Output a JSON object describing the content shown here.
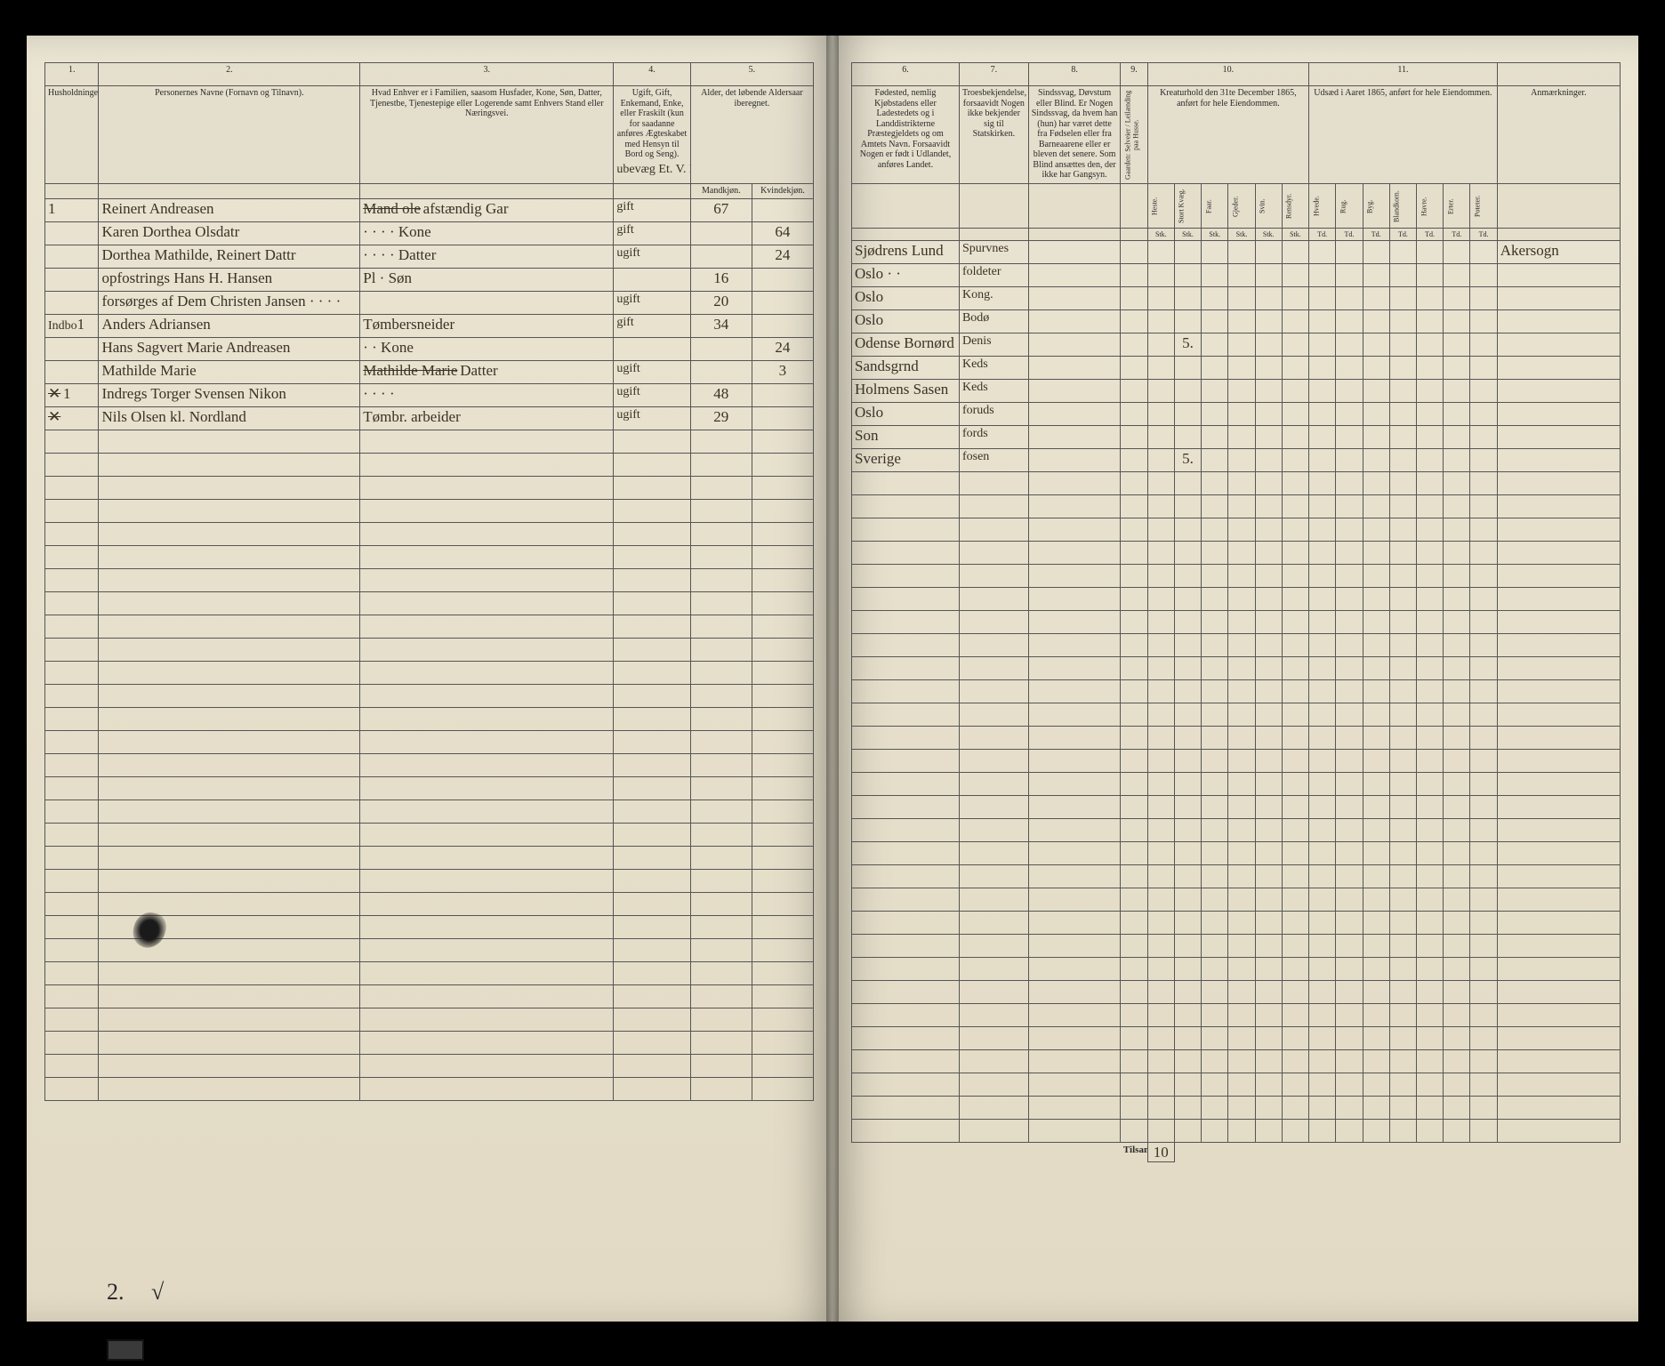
{
  "doc_type": "census_ledger_spread",
  "colors": {
    "paper": "#e8e2d0",
    "ink": "#2a2a2a",
    "script_ink": "#3a3226",
    "rule": "#555555",
    "frame": "#000000"
  },
  "left_page": {
    "col_numbers": [
      "1.",
      "2.",
      "3.",
      "4.",
      "5."
    ],
    "headers": {
      "c1": "Husholdninger.",
      "c2": "Personernes Navne (Fornavn og Tilnavn).",
      "c3": "Hvad Enhver er i Familien, saasom Husfader, Kone, Søn, Datter, Tjenestbe, Tjenestepige eller Logerende samt Enhvers Stand eller Næringsvei.",
      "c4": "Ugift, Gift, Enkemand, Enke, eller Fraskilt (kun for saadanne anføres Ægteskabet med Hensyn til Bord og Seng).",
      "c5": "Alder, det løbende Aldersaar iberegnet.",
      "c5a": "Mandkjøn.",
      "c5b": "Kvindekjøn."
    },
    "annotation_above_col4": "ubevæg Et. V. Pm",
    "rows": [
      {
        "hh": "1",
        "name": "Reinert Andreasen",
        "rel": "afstændig Gar",
        "rel_struck": "Mand ole",
        "civ": "gift",
        "m": "67",
        "k": ""
      },
      {
        "hh": "",
        "name": "Karen Dorthea Olsdatr",
        "rel": "· · · · Kone",
        "civ": "gift",
        "m": "",
        "k": "64"
      },
      {
        "hh": "",
        "name": "Dorthea Mathilde, Reinert Dattr",
        "rel": "· · · · Datter",
        "civ": "ugift",
        "m": "",
        "k": "24"
      },
      {
        "hh": "",
        "name": "opfostrings Hans H. Hansen",
        "rel": "Pl · Søn",
        "civ": "",
        "m": "16",
        "k": ""
      },
      {
        "hh": "",
        "name": "forsørges af Dem Christen Jansen · · · ·",
        "rel": "",
        "civ": "ugift",
        "m": "20",
        "k": ""
      },
      {
        "hh": "1",
        "hh_note": "Indbo",
        "name": "Anders Adriansen",
        "rel": "Tømbersneider",
        "civ": "gift",
        "m": "34",
        "k": ""
      },
      {
        "hh": "",
        "name": "Hans Sagvert Marie Andreasen",
        "rel": "· · Kone",
        "civ": "",
        "m": "",
        "k": "24"
      },
      {
        "hh": "",
        "name": "Mathilde Marie",
        "rel_struck": "Mathilde Marie",
        "rel": "Datter",
        "civ": "ugift",
        "m": "",
        "k": "3"
      },
      {
        "hh": "1",
        "hh_struck": "✕",
        "name": "Indregs Torger Svensen Nikon",
        "rel": "· · · ·",
        "civ": "ugift",
        "m": "48",
        "k": ""
      },
      {
        "hh": "",
        "hh_struck": "✕",
        "name": "Nils Olsen kl. Nordland",
        "rel": "Tømbr. arbeider",
        "civ": "ugift",
        "m": "29",
        "k": ""
      }
    ],
    "empty_rows": 29,
    "footer_left": "2.",
    "footer_check": "√"
  },
  "right_page": {
    "col_numbers": [
      "6.",
      "7.",
      "8.",
      "9.",
      "10.",
      "11.",
      ""
    ],
    "headers": {
      "c6": "Fødested, nemlig Kjøbstadens eller Ladestedets og i Landdistrikterne Præstegjeldets og om Amtets Navn. Forsaavidt Nogen er født i Udlandet, anføres Landet.",
      "c7": "Troesbekjendelse, forsaavidt Nogen ikke bekjender sig til Statskirken.",
      "c8": "Sindssvag, Døvstum eller Blind. Er Nogen Sindssvag, da hvem han (hun) har været dette fra Fødselen eller fra Barneaarene eller er bleven det senere. Som Blind ansættes den, der ikke har Gangsyn.",
      "c9": "Gaarden: Selveier / Leilænding paa Husse.",
      "c10": "Kreaturhold den 31te December 1865, anført for hele Eiendommen.",
      "c10_sub": [
        "Heste.",
        "Stort Kvæg.",
        "Faar.",
        "Gjeder.",
        "Svin.",
        "Rensdyr."
      ],
      "c10_unit": "Stk.",
      "c11": "Udsæd i Aaret 1865, anført for hele Eiendommen.",
      "c11_sub": [
        "Hvede.",
        "Rug.",
        "Byg.",
        "Blandkorn.",
        "Havre.",
        "Erter.",
        "Poteter."
      ],
      "c11_unit": "Td.",
      "c12": "Anmærkninger."
    },
    "rows": [
      {
        "birth": "Sjødrens Lund",
        "faith": "Spurvnes",
        "c10_2": "",
        "note": "Akersogn"
      },
      {
        "birth": "Oslo · ·",
        "faith": "foldeter"
      },
      {
        "birth": "Oslo",
        "faith": "Kong."
      },
      {
        "birth": "Oslo",
        "faith": "Bodø"
      },
      {
        "birth": "Odense Bornørd",
        "faith": "Denis",
        "c10_2": "5."
      },
      {
        "birth": "Sandsgrnd",
        "faith": "Keds"
      },
      {
        "birth": "Holmens Sasen",
        "faith": "Keds"
      },
      {
        "birth": "Oslo",
        "faith": "foruds"
      },
      {
        "birth": "Son",
        "faith": "fords"
      },
      {
        "birth": "Sverige",
        "faith": "fosen",
        "c10_2": "5."
      }
    ],
    "empty_rows": 29,
    "tilsammen_label": "Tilsammen",
    "tilsammen_val": "10"
  }
}
